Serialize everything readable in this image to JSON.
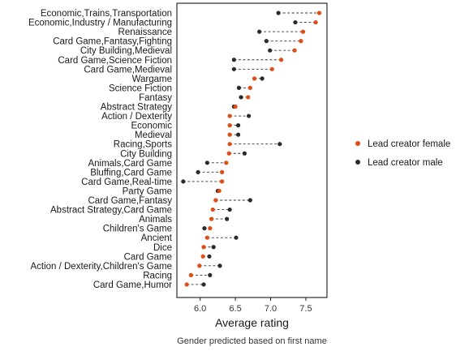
{
  "chart_data": {
    "type": "scatter",
    "subtype": "dumbbell",
    "title": "",
    "xlabel": "Average rating",
    "ylabel": "",
    "caption": "Gender predicted based on first name",
    "xlim": [
      5.67,
      7.8
    ],
    "xticks": [
      6.0,
      6.5,
      7.0,
      7.5
    ],
    "xtick_labels": [
      "6.0",
      "6.5",
      "7.0",
      "7.5"
    ],
    "grid": false,
    "legend_position": "right",
    "series": [
      {
        "name": "Lead creator female",
        "color": "#e8490f"
      },
      {
        "name": "Lead creator male",
        "color": "#2b2b2b"
      }
    ],
    "categories": [
      "Economic,Trains,Transportation",
      "Economic,Industry / Manufacturing",
      "Renaissance",
      "Card Game,Fantasy,Fighting",
      "City Building,Medieval",
      "Card Game,Science Fiction",
      "Card Game,Medieval",
      "Wargame",
      "Science Fiction",
      "Fantasy",
      "Abstract Strategy",
      "Action / Dexterity",
      "Economic",
      "Medieval",
      "Racing,Sports",
      "City Building",
      "Animals,Card Game",
      "Bluffing,Card Game",
      "Card Game,Real-time",
      "Party Game",
      "Card Game,Fantasy",
      "Abstract Strategy,Card Game",
      "Animals",
      "Children's Game",
      "Ancient",
      "Dice",
      "Card Game",
      "Action / Dexterity,Children's Game",
      "Racing",
      "Card Game,Humor"
    ],
    "female": [
      7.69,
      7.64,
      7.46,
      7.43,
      7.34,
      7.15,
      7.02,
      6.77,
      6.71,
      6.68,
      6.5,
      6.42,
      6.42,
      6.42,
      6.42,
      6.41,
      6.37,
      6.31,
      6.31,
      6.27,
      6.22,
      6.18,
      6.16,
      6.14,
      6.1,
      6.05,
      6.04,
      5.99,
      5.87,
      5.81
    ],
    "male": [
      7.11,
      7.35,
      6.84,
      6.94,
      6.99,
      6.48,
      6.48,
      6.88,
      6.55,
      6.58,
      6.48,
      6.69,
      6.54,
      6.54,
      7.13,
      6.63,
      6.1,
      5.97,
      5.76,
      6.25,
      6.71,
      6.42,
      6.38,
      6.06,
      6.51,
      6.19,
      6.13,
      6.28,
      6.14,
      6.05
    ]
  }
}
